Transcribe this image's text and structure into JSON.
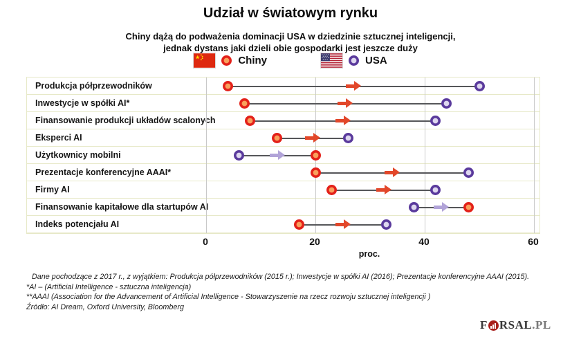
{
  "title": "Udział w światowym rynku",
  "subtitle_line1": "Chiny dążą do podważenia dominacji USA w dziedzinie sztucznej inteligencji,",
  "subtitle_line2": "jednak dystans jaki dzieli obie gospodarki jest jeszcze duży",
  "legend": {
    "china_label": "Chiny",
    "usa_label": "USA"
  },
  "chart_data": {
    "type": "dumbbell",
    "title": "Udział w światowym rynku",
    "xlabel": "proc.",
    "xlim": [
      0,
      60
    ],
    "x_ticks": [
      0,
      20,
      40,
      60
    ],
    "grid": true,
    "series": [
      {
        "name": "Chiny",
        "color": "#e32119"
      },
      {
        "name": "USA",
        "color": "#5a3a9c"
      }
    ],
    "rows": [
      {
        "label": "Produkcja półprzewodników",
        "chiny": 4,
        "usa": 50,
        "arrow": "chiny"
      },
      {
        "label": "Inwestycje w spółki AI*",
        "chiny": 7,
        "usa": 44,
        "arrow": "chiny"
      },
      {
        "label": "Finansowanie produkcji układów scalonych",
        "chiny": 8,
        "usa": 42,
        "arrow": "chiny"
      },
      {
        "label": "Eksperci AI",
        "chiny": 13,
        "usa": 26,
        "arrow": "chiny"
      },
      {
        "label": "Użytkownicy mobilni",
        "chiny": 20,
        "usa": 6,
        "arrow": "usa"
      },
      {
        "label": "Prezentacje konferencyjne AAAI*",
        "chiny": 20,
        "usa": 48,
        "arrow": "chiny"
      },
      {
        "label": "Firmy AI",
        "chiny": 23,
        "usa": 42,
        "arrow": "chiny"
      },
      {
        "label": "Finansowanie kapitałowe dla startupów AI",
        "chiny": 48,
        "usa": 38,
        "arrow": "usa"
      },
      {
        "label": "Indeks potencjału AI",
        "chiny": 17,
        "usa": 33,
        "arrow": "chiny"
      }
    ],
    "colors": {
      "china_ring": "#e32119",
      "china_center": "#f9a05c",
      "usa_ring": "#5a3a9c",
      "usa_center": "#ded7ef",
      "china_arrow": "#e2472a",
      "usa_arrow": "#b1a3d8",
      "connector_line": "#555659",
      "row_border": "#e7e9c8",
      "gridline": "#c9c9c9"
    }
  },
  "axis": {
    "ticks": [
      "0",
      "20",
      "40",
      "60"
    ],
    "label": "proc."
  },
  "footnotes": [
    "Dane pochodzące z 2017 r., z wyjątkiem: Produkcja półprzewodników (2015 r.); Inwestycje w spółki AI (2016); Prezentacje konferencyjne AAAI (2015).",
    "*AI – (Artificial Intelligence - sztuczna inteligencja)",
    "**AAAI (Association for the Advancement of Artificial Intelligence - Stowarzyszenie na rzecz rozwoju sztucznej inteligencji )",
    "Źródło: AI Dream, Oxford University, Bloomberg"
  ],
  "logo": {
    "prefix": "F",
    "middle": "RSAL",
    "tld": ".PL"
  }
}
